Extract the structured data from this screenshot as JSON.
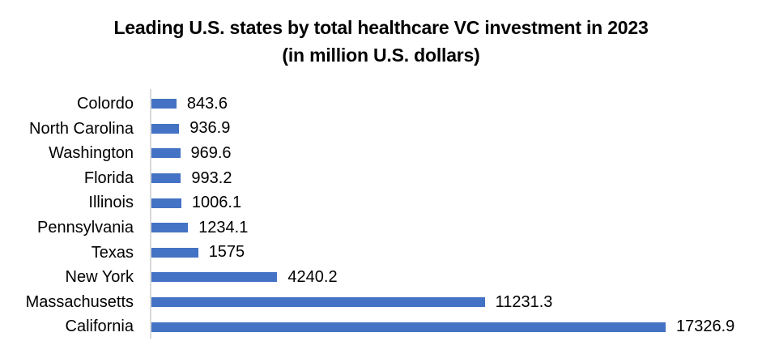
{
  "title": {
    "line1": "Leading U.S. states by total healthcare VC investment in 2023",
    "line2": "(in million U.S. dollars)"
  },
  "chart_data": {
    "type": "bar",
    "orientation": "horizontal",
    "title": "Leading U.S. states by total healthcare VC investment in 2023 (in million U.S. dollars)",
    "categories": [
      "Colordo",
      "North Carolina",
      "Washington",
      "Florida",
      "Illinois",
      "Pennsylvania",
      "Texas",
      "New York",
      "Massachusetts",
      "California"
    ],
    "values": [
      843.6,
      936.9,
      969.6,
      993.2,
      1006.1,
      1234.1,
      1575,
      4240.2,
      11231.3,
      17326.9
    ],
    "value_labels": [
      "843.6",
      "936.9",
      "969.6",
      "993.2",
      "1006.1",
      "1234.1",
      "1575",
      "4240.2",
      "11231.3",
      "17326.9"
    ],
    "xlabel": "",
    "ylabel": "",
    "xlim": [
      0,
      17500
    ],
    "sort_order": "ascending-top-to-bottom",
    "grid": false,
    "legend": false,
    "bar_color": "#4472C4",
    "axis_line_color": "#D9D9D9",
    "text_color": "#000000",
    "background_color": "#FFFFFF"
  }
}
